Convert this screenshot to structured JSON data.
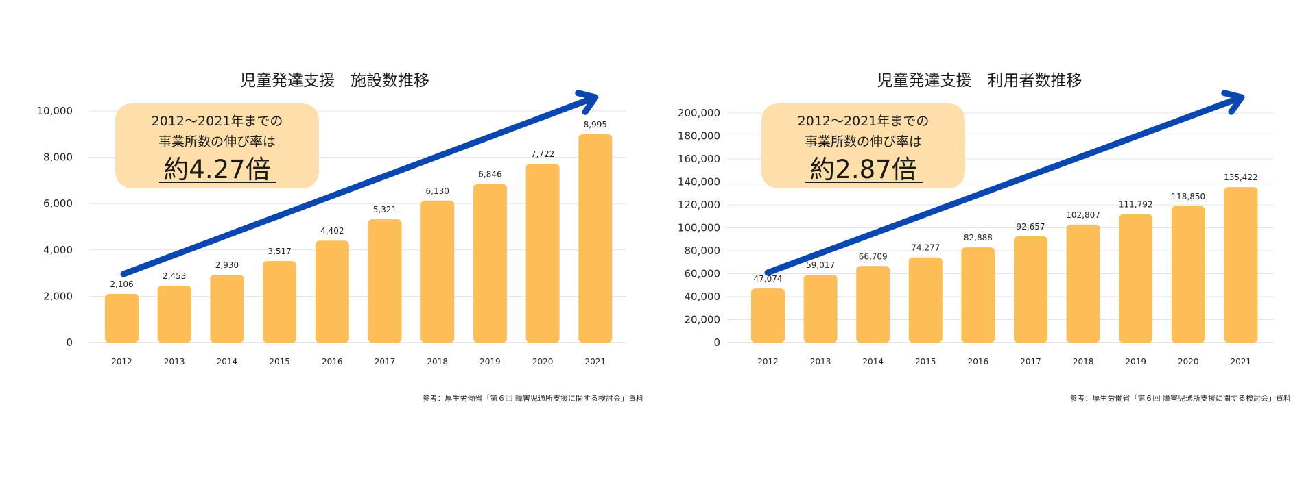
{
  "chart_data": [
    {
      "type": "bar",
      "title": "児童発達支援　施設数推移",
      "categories": [
        "2012",
        "2013",
        "2014",
        "2015",
        "2016",
        "2017",
        "2018",
        "2019",
        "2020",
        "2021"
      ],
      "values": [
        2106,
        2453,
        2930,
        3517,
        4402,
        5321,
        6130,
        6846,
        7722,
        8995
      ],
      "value_labels": [
        "2,106",
        "2,453",
        "2,930",
        "3,517",
        "4,402",
        "5,321",
        "6,130",
        "6,846",
        "7,722",
        "8,995"
      ],
      "y_ticks": [
        0,
        2000,
        4000,
        6000,
        8000,
        10000
      ],
      "y_tick_labels": [
        "0",
        "2,000",
        "4,000",
        "6,000",
        "8,000",
        "10,000"
      ],
      "ylim": [
        0,
        10000
      ],
      "grid": true,
      "bar_color": "#FDBE58",
      "arrow_color": "#0A47B0",
      "callout": {
        "line1": "2012～2021年までの",
        "line2": "事業所数の伸び率は",
        "highlight": "約4.27倍",
        "bg_color": "#FEDFA9"
      },
      "source": "参考：厚生労働省「第６回 障害児通所支援に関する検討会」資料"
    },
    {
      "type": "bar",
      "title": "児童発達支援　利用者数推移",
      "categories": [
        "2012",
        "2013",
        "2014",
        "2015",
        "2016",
        "2017",
        "2018",
        "2019",
        "2020",
        "2021"
      ],
      "values": [
        47074,
        59017,
        66709,
        74277,
        82888,
        92657,
        102807,
        111792,
        118850,
        135422
      ],
      "value_labels": [
        "47,074",
        "59,017",
        "66,709",
        "74,277",
        "82,888",
        "92,657",
        "102,807",
        "111,792",
        "118,850",
        "135,422"
      ],
      "y_ticks": [
        0,
        20000,
        40000,
        60000,
        80000,
        100000,
        120000,
        140000,
        160000,
        180000,
        200000
      ],
      "y_tick_labels": [
        "0",
        "20,000",
        "40,000",
        "60,000",
        "80,000",
        "100,000",
        "120,000",
        "140,000",
        "160,000",
        "180,000",
        "200,000"
      ],
      "ylim": [
        0,
        200000
      ],
      "grid": true,
      "bar_color": "#FDBE58",
      "arrow_color": "#0A47B0",
      "callout": {
        "line1": "2012～2021年までの",
        "line2": "事業所数の伸び率は",
        "highlight": "約2.87倍",
        "bg_color": "#FEDFA9"
      },
      "source": "参考：厚生労働省「第６回 障害児通所支援に関する検討会」資料"
    }
  ]
}
